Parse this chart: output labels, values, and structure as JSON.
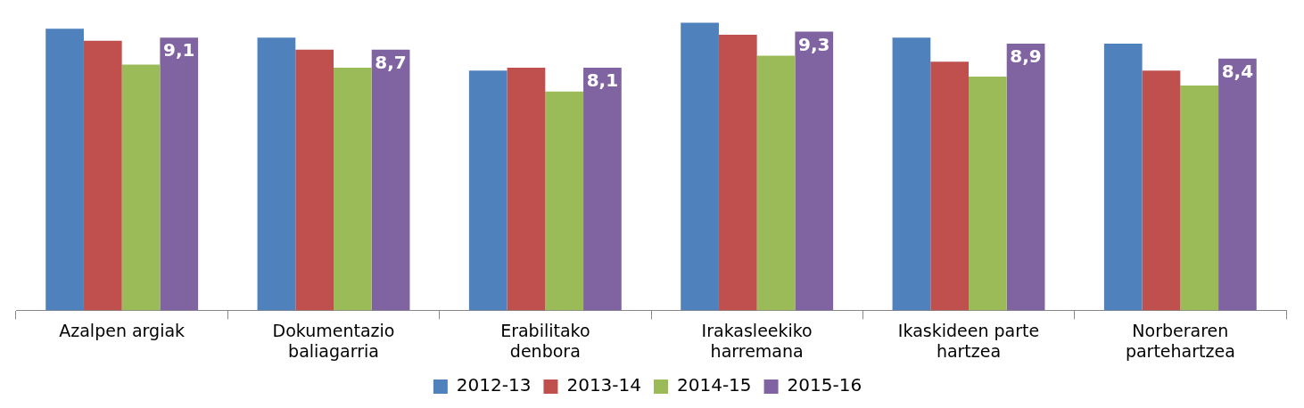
{
  "chart_data": {
    "type": "bar",
    "categories": [
      "Azalpen argiak",
      "Dokumentazio baliagarria",
      "Erabilitako denbora",
      "Irakasleekiko harremana",
      "Ikaskideen parte hartzea",
      "Norberaren partehartzea"
    ],
    "series": [
      {
        "name": "2012-13",
        "color": "#4f81bd",
        "values": [
          9.4,
          9.1,
          8.0,
          9.6,
          9.1,
          8.9
        ]
      },
      {
        "name": "2013-14",
        "color": "#c0504d",
        "values": [
          9.0,
          8.7,
          8.1,
          9.2,
          8.3,
          8.0
        ]
      },
      {
        "name": "2014-15",
        "color": "#9bbb59",
        "values": [
          8.2,
          8.1,
          7.3,
          8.5,
          7.8,
          7.5
        ]
      },
      {
        "name": "2015-16",
        "color": "#8064a2",
        "values": [
          9.1,
          8.7,
          8.1,
          9.3,
          8.9,
          8.4
        ],
        "value_labels": [
          "9,1",
          "8,7",
          "8,1",
          "9,3",
          "8,9",
          "8,4"
        ]
      }
    ],
    "legend": "bottom",
    "grid": false
  }
}
